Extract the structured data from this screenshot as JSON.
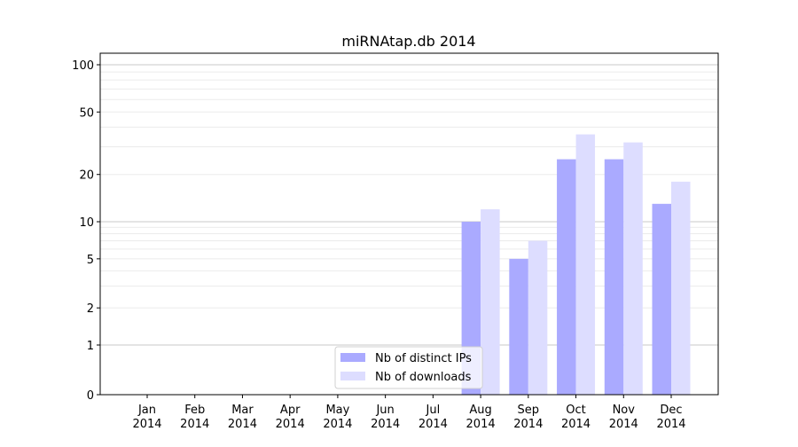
{
  "chart_data": {
    "type": "bar",
    "title": "miRNAtap.db 2014",
    "xlabel": "",
    "ylabel": "",
    "yscale": "symlog",
    "ylim": [
      0,
      110
    ],
    "yticks": [
      0,
      1,
      2,
      5,
      10,
      20,
      50,
      100
    ],
    "grid": true,
    "legend_position": "bottom-center",
    "categories": [
      "Jan\n2014",
      "Feb\n2014",
      "Mar\n2014",
      "Apr\n2014",
      "May\n2014",
      "Jun\n2014",
      "Jul\n2014",
      "Aug\n2014",
      "Sep\n2014",
      "Oct\n2014",
      "Nov\n2014",
      "Dec\n2014"
    ],
    "series": [
      {
        "name": "Nb of distinct IPs",
        "color": "#aaaaff",
        "values": [
          0,
          0,
          0,
          0,
          0,
          0,
          0,
          10,
          5,
          25,
          25,
          13
        ]
      },
      {
        "name": "Nb of downloads",
        "color": "#ddddff",
        "values": [
          0,
          0,
          0,
          0,
          0,
          0,
          0,
          12,
          7,
          36,
          32,
          18
        ]
      }
    ]
  }
}
